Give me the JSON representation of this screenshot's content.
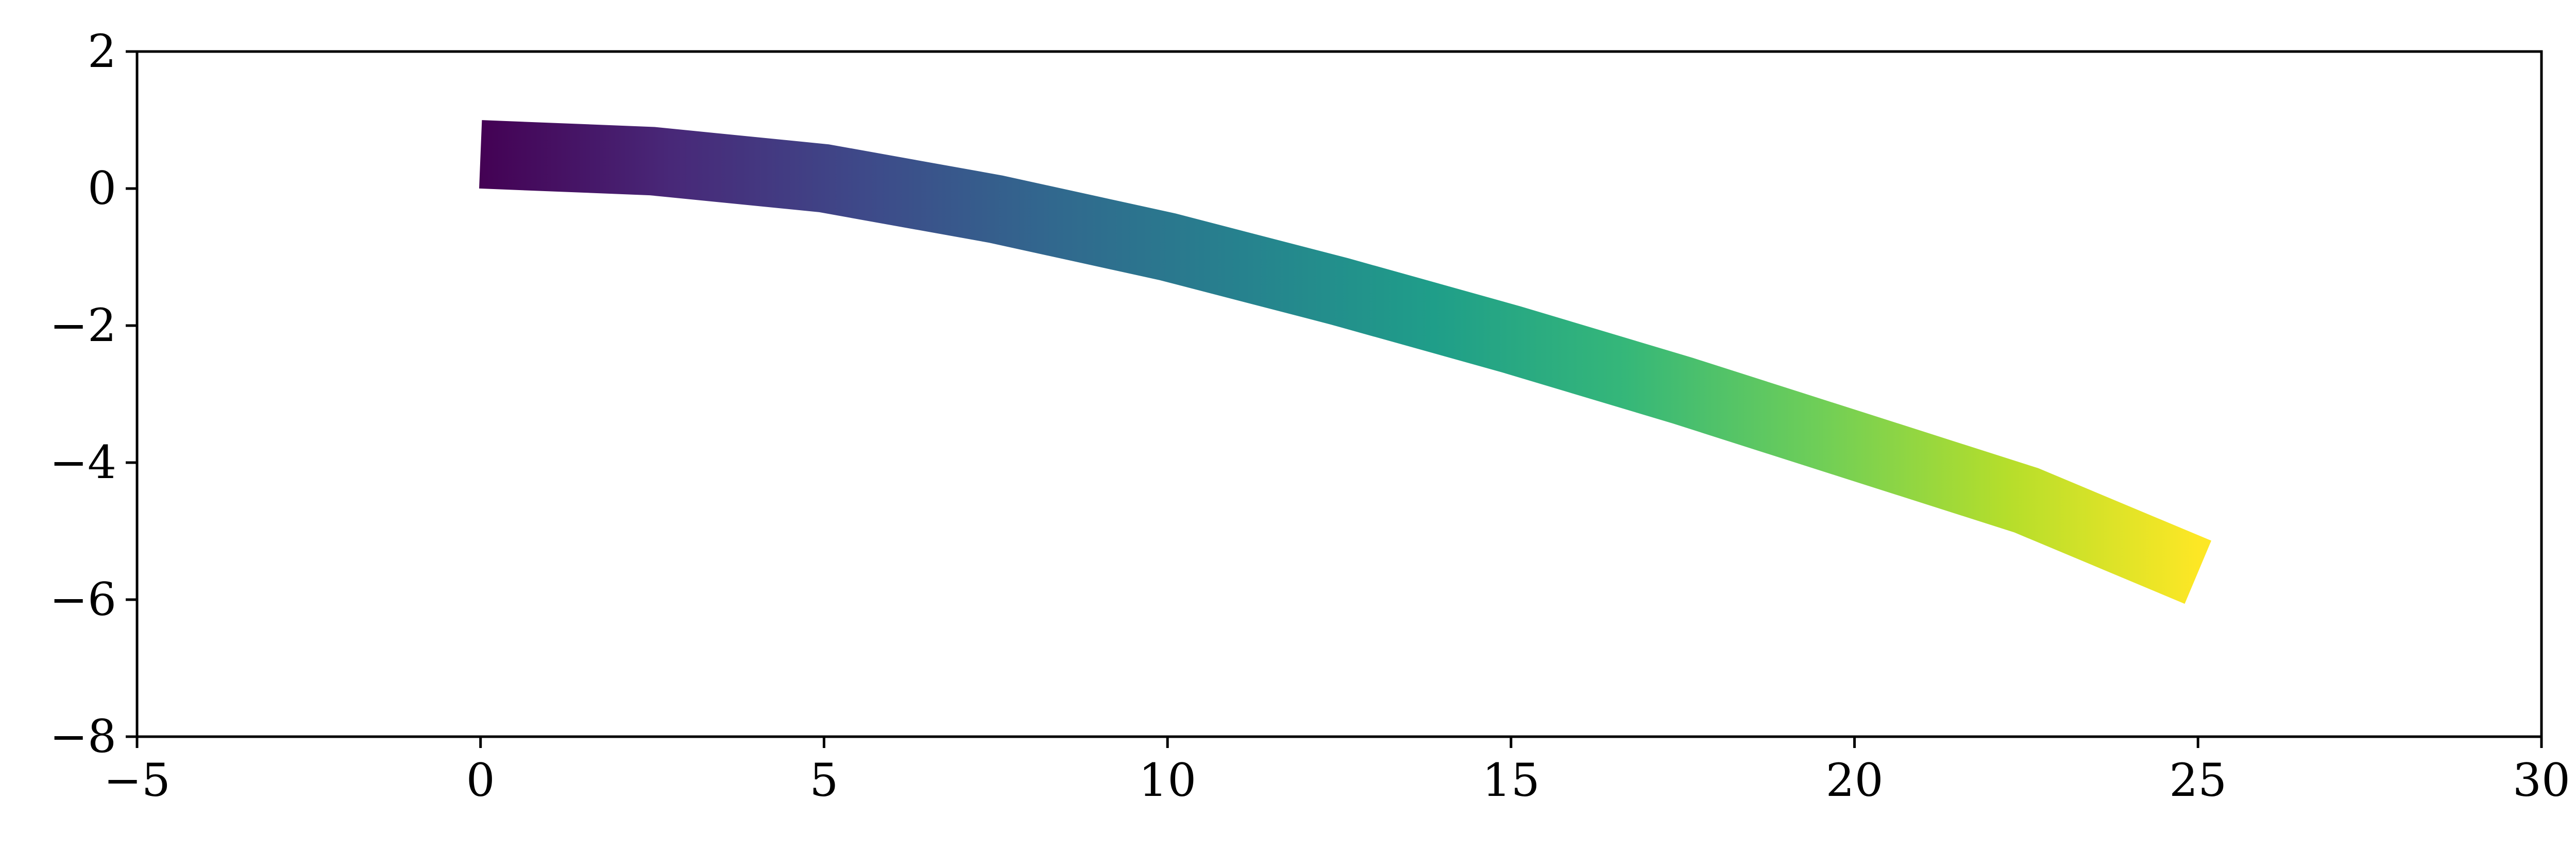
{
  "chart_data": {
    "type": "line",
    "title": "",
    "xlabel": "",
    "ylabel": "",
    "xlim": [
      -5,
      30
    ],
    "ylim": [
      -8,
      2
    ],
    "x_ticks": [
      -5,
      0,
      5,
      10,
      15,
      20,
      25,
      30
    ],
    "y_ticks": [
      2,
      0,
      -2,
      -4,
      -6,
      -8
    ],
    "x_tick_labels": [
      "−5",
      "0",
      "5",
      "10",
      "15",
      "20",
      "25",
      "30"
    ],
    "y_tick_labels": [
      "2",
      "0",
      "−2",
      "−4",
      "−6",
      "−8"
    ],
    "grid": false,
    "legend": "none",
    "colormap": "viridis",
    "colormap_stops": [
      "#440154",
      "#482878",
      "#3e4989",
      "#31688e",
      "#26828e",
      "#1f9e89",
      "#35b779",
      "#6ece58",
      "#b5de2b",
      "#fde725"
    ],
    "band": {
      "description_series": "beam centerline with constant thickness colored along its length",
      "thickness": 1.0,
      "centerline": [
        {
          "x": 0.0,
          "y": 0.5
        },
        {
          "x": 2.5,
          "y": 0.4
        },
        {
          "x": 5.0,
          "y": 0.15
        },
        {
          "x": 7.5,
          "y": -0.3
        },
        {
          "x": 10.0,
          "y": -0.85
        },
        {
          "x": 12.5,
          "y": -1.5
        },
        {
          "x": 15.0,
          "y": -2.2
        },
        {
          "x": 17.5,
          "y": -2.95
        },
        {
          "x": 20.0,
          "y": -3.75
        },
        {
          "x": 22.5,
          "y": -4.55
        },
        {
          "x": 25.0,
          "y": -5.6
        }
      ]
    }
  }
}
